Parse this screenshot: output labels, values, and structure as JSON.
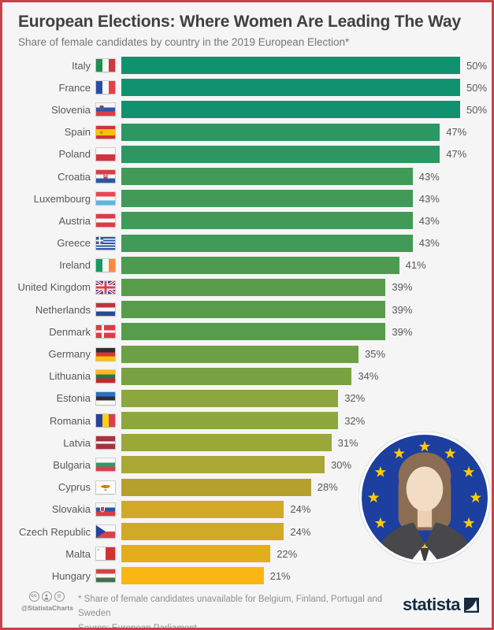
{
  "frame": {
    "background": "#f5f5f6",
    "border_color": "#c7424b"
  },
  "header": {
    "title": "European Elections: Where Women Are Leading The Way",
    "subtitle": "Share of female candidates by country in the 2019 European Election*"
  },
  "chart_data": {
    "type": "bar",
    "orientation": "horizontal",
    "title": "European Elections: Where Women Are Leading The Way",
    "subtitle": "Share of female candidates by country in the 2019 European Election*",
    "unit": "%",
    "xlim": [
      0,
      50
    ],
    "grid": false,
    "legend": false,
    "categories": [
      "Italy",
      "France",
      "Slovenia",
      "Spain",
      "Poland",
      "Croatia",
      "Luxembourg",
      "Austria",
      "Greece",
      "Ireland",
      "United Kingdom",
      "Netherlands",
      "Denmark",
      "Germany",
      "Lithuania",
      "Estonia",
      "Romania",
      "Latvia",
      "Bulgaria",
      "Cyprus",
      "Slovakia",
      "Czech Republic",
      "Malta",
      "Hungary"
    ],
    "values": [
      50,
      50,
      50,
      47,
      47,
      43,
      43,
      43,
      43,
      41,
      39,
      39,
      39,
      35,
      34,
      32,
      32,
      31,
      30,
      28,
      24,
      24,
      22,
      21
    ],
    "bar_colors": [
      "#11926F",
      "#11926F",
      "#11926F",
      "#2C9763",
      "#2C9763",
      "#419A57",
      "#419A57",
      "#419A57",
      "#419A57",
      "#4C9B51",
      "#579C4B",
      "#579C4B",
      "#579C4B",
      "#6CA045",
      "#78A241",
      "#8CA73C",
      "#8CA73C",
      "#99A839",
      "#A9A836",
      "#B5A02E",
      "#D0AA26",
      "#D0AA26",
      "#E3AD1C",
      "#FCB614"
    ],
    "flags": [
      "it",
      "fr",
      "si",
      "es",
      "pl",
      "hr",
      "lu",
      "at",
      "gr",
      "ie",
      "gb",
      "nl",
      "dk",
      "de",
      "lt",
      "ee",
      "ro",
      "lv",
      "bg",
      "cy",
      "sk",
      "cz",
      "mt",
      "hu"
    ]
  },
  "illustration": {
    "icon": "woman-eu-avatar-icon",
    "eu_blue": "#1c3fa0",
    "star_yellow": "#ffcc00"
  },
  "footer": {
    "license_icons": [
      "cc-icon",
      "attribution-icon",
      "no-derivatives-icon"
    ],
    "license_handle": "@StatistaCharts",
    "footnote": "* Share of female candidates unavailable for Belgium, Finland, Portugal and Sweden",
    "source": "Source: European Parliament",
    "brand": "statista",
    "brand_color": "#162b40"
  }
}
